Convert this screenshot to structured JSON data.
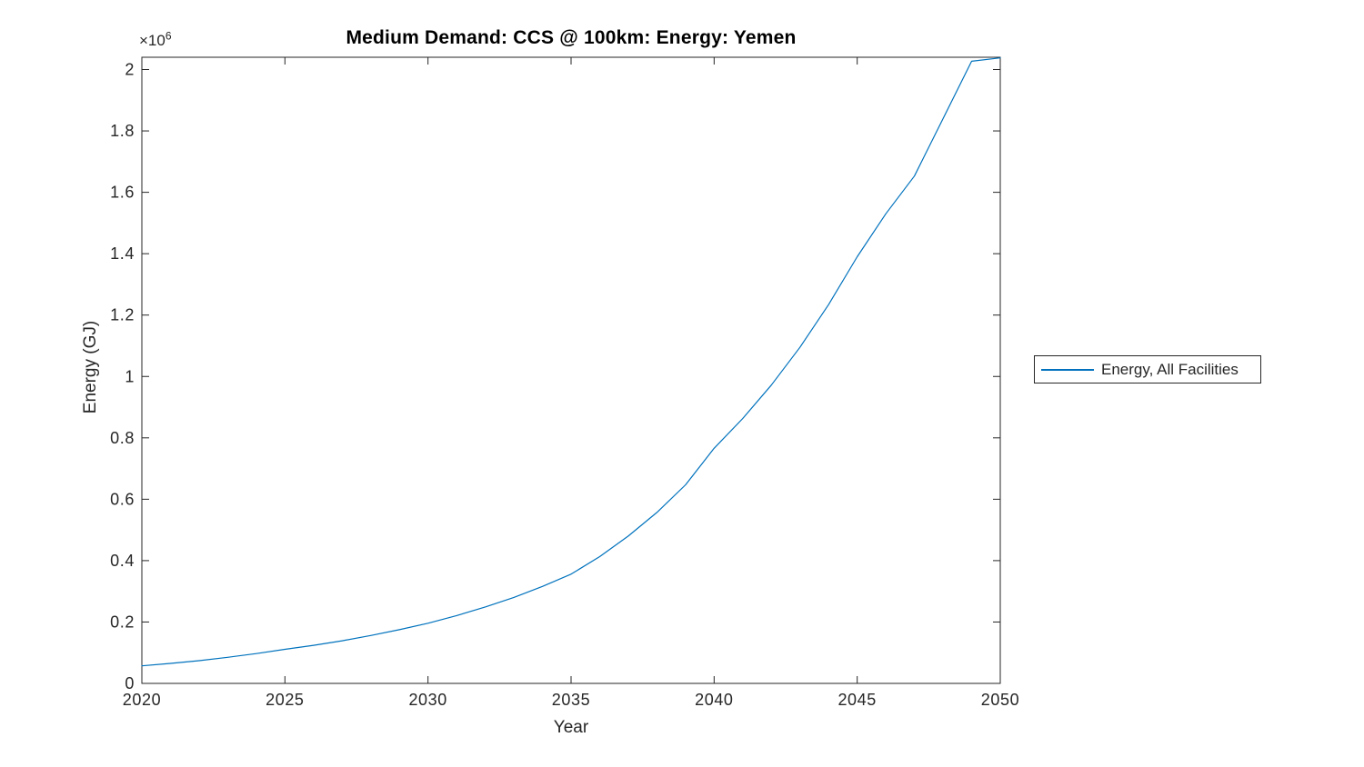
{
  "figure": {
    "title": "Medium Demand: CCS @ 100km: Energy: Yemen",
    "exponent_base": "×10",
    "exponent_power": "6",
    "xlabel": "Year",
    "ylabel": "Energy (GJ)"
  },
  "legend": {
    "items": [
      {
        "label": "Energy, All Facilities",
        "color": "#0072BD"
      }
    ]
  },
  "colors": {
    "line": "#0072BD",
    "axis": "#262626",
    "text": "#262626",
    "title": "#000000",
    "background": "#ffffff"
  },
  "chart_data": {
    "type": "line",
    "title": "Medium Demand: CCS @ 100km: Energy: Yemen",
    "xlabel": "Year",
    "ylabel": "Energy (GJ)",
    "y_unit_multiplier": 1000000,
    "x": [
      2020,
      2021,
      2022,
      2023,
      2024,
      2025,
      2026,
      2027,
      2028,
      2029,
      2030,
      2031,
      2032,
      2033,
      2034,
      2035,
      2036,
      2037,
      2038,
      2039,
      2040,
      2041,
      2042,
      2043,
      2044,
      2045,
      2046,
      2047,
      2048,
      2049,
      2050
    ],
    "series": [
      {
        "name": "Energy, All Facilities",
        "color": "#0072BD",
        "values": [
          57000,
          65000,
          74000,
          85000,
          97000,
          111000,
          124000,
          139000,
          156000,
          175000,
          196000,
          221000,
          249000,
          280000,
          316000,
          356000,
          413000,
          480000,
          557000,
          647000,
          766000,
          863000,
          972000,
          1095000,
          1234000,
          1390000,
          1530000,
          1653000,
          1840000,
          2027000,
          2038000
        ]
      }
    ],
    "xlim": [
      2020,
      2050
    ],
    "ylim": [
      0,
      2040000
    ],
    "xticks": [
      2020,
      2025,
      2030,
      2035,
      2040,
      2045,
      2050
    ],
    "yticks": [
      0,
      200000,
      400000,
      600000,
      800000,
      1000000,
      1200000,
      1400000,
      1600000,
      1800000,
      2000000
    ],
    "ytick_labels": [
      "0",
      "0.2",
      "0.4",
      "0.6",
      "0.8",
      "1",
      "1.2",
      "1.4",
      "1.6",
      "1.8",
      "2"
    ],
    "grid": false,
    "legend_position": "right-outside"
  }
}
